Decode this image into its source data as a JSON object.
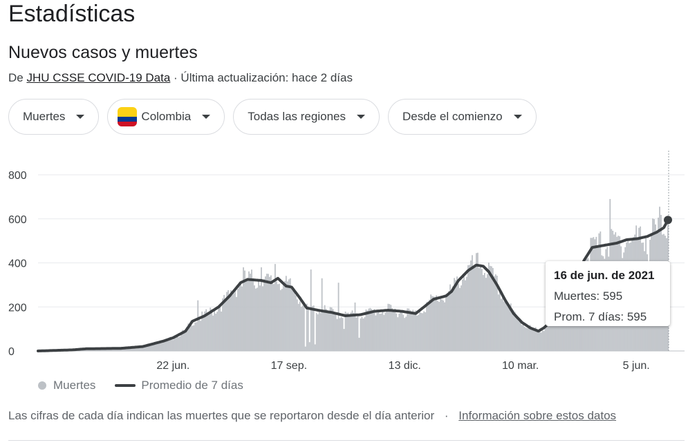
{
  "page": {
    "title": "Estadísticas"
  },
  "section": {
    "title": "Nuevos casos y muertes",
    "source_prefix": "De",
    "source_link": "JHU CSSE COVID-19 Data",
    "updated": "· Última actualización: hace 2 días"
  },
  "filters": {
    "metric": "Muertes",
    "country": "Colombia",
    "region": "Todas las regiones",
    "period": "Desde el comienzo"
  },
  "colors": {
    "bars": "#bdc1c6",
    "line": "#3c4043",
    "grid": "#e8eaed",
    "flag_yellow": "#fcd116",
    "flag_blue": "#003893",
    "flag_red": "#ce1126"
  },
  "chart_data": {
    "type": "bar",
    "y_ticks": [
      "0",
      "200",
      "400",
      "600",
      "800"
    ],
    "x_ticks": [
      "22 jun.",
      "17 sep.",
      "13 dic.",
      "10 mar.",
      "5 jun."
    ],
    "ylim": [
      0,
      900
    ],
    "grid": true,
    "legend_position": "bottom-left",
    "legend": [
      "Muertes",
      "Promedio de 7 días"
    ],
    "series": [
      {
        "name": "Muertes",
        "type": "bar"
      },
      {
        "name": "Promedio de 7 días",
        "type": "line"
      }
    ],
    "avg_control_points": [
      [
        "2020-03-16",
        0
      ],
      [
        "2020-04-10",
        5
      ],
      [
        "2020-04-20",
        10
      ],
      [
        "2020-05-15",
        12
      ],
      [
        "2020-05-31",
        20
      ],
      [
        "2020-06-15",
        45
      ],
      [
        "2020-06-22",
        60
      ],
      [
        "2020-07-01",
        90
      ],
      [
        "2020-07-06",
        135
      ],
      [
        "2020-07-15",
        160
      ],
      [
        "2020-07-25",
        200
      ],
      [
        "2020-08-02",
        250
      ],
      [
        "2020-08-10",
        310
      ],
      [
        "2020-08-15",
        325
      ],
      [
        "2020-08-25",
        320
      ],
      [
        "2020-09-01",
        310
      ],
      [
        "2020-09-06",
        330
      ],
      [
        "2020-09-12",
        295
      ],
      [
        "2020-09-16",
        290
      ],
      [
        "2020-09-22",
        240
      ],
      [
        "2020-09-27",
        195
      ],
      [
        "2020-10-05",
        185
      ],
      [
        "2020-10-15",
        175
      ],
      [
        "2020-10-25",
        160
      ],
      [
        "2020-11-05",
        165
      ],
      [
        "2020-11-15",
        180
      ],
      [
        "2020-11-25",
        185
      ],
      [
        "2020-12-05",
        180
      ],
      [
        "2020-12-15",
        170
      ],
      [
        "2020-12-20",
        195
      ],
      [
        "2020-12-28",
        235
      ],
      [
        "2021-01-06",
        250
      ],
      [
        "2021-01-10",
        270
      ],
      [
        "2021-01-15",
        320
      ],
      [
        "2021-01-22",
        365
      ],
      [
        "2021-01-28",
        390
      ],
      [
        "2021-02-02",
        385
      ],
      [
        "2021-02-06",
        360
      ],
      [
        "2021-02-12",
        300
      ],
      [
        "2021-02-18",
        230
      ],
      [
        "2021-02-24",
        170
      ],
      [
        "2021-03-02",
        130
      ],
      [
        "2021-03-08",
        105
      ],
      [
        "2021-03-14",
        90
      ],
      [
        "2021-03-18",
        105
      ],
      [
        "2021-03-25",
        145
      ],
      [
        "2021-04-02",
        200
      ],
      [
        "2021-04-10",
        300
      ],
      [
        "2021-04-16",
        410
      ],
      [
        "2021-04-22",
        470
      ],
      [
        "2021-05-01",
        480
      ],
      [
        "2021-05-10",
        490
      ],
      [
        "2021-05-17",
        505
      ],
      [
        "2021-05-25",
        510
      ],
      [
        "2021-06-01",
        520
      ],
      [
        "2021-06-08",
        540
      ],
      [
        "2021-06-13",
        560
      ],
      [
        "2021-06-16",
        595
      ]
    ],
    "daily_spikes": [
      [
        "2020-07-10",
        230
      ],
      [
        "2020-08-12",
        380
      ],
      [
        "2020-08-25",
        380
      ],
      [
        "2020-09-04",
        395
      ],
      [
        "2020-09-30",
        370
      ],
      [
        "2020-10-03",
        350
      ],
      [
        "2020-10-08",
        330
      ],
      [
        "2020-10-20",
        310
      ],
      [
        "2020-11-01",
        220
      ],
      [
        "2021-05-05",
        690
      ],
      [
        "2021-06-10",
        655
      ]
    ],
    "daily_dips": [
      [
        "2020-09-26",
        20
      ],
      [
        "2020-09-29",
        40
      ],
      [
        "2020-10-03",
        30
      ],
      [
        "2020-10-24",
        100
      ],
      [
        "2020-11-04",
        60
      ],
      [
        "2021-06-02",
        120
      ]
    ],
    "highlight": {
      "date": "2021-06-16",
      "value": 595
    }
  },
  "tooltip": {
    "date": "16 de jun. de 2021",
    "deaths": "Muertes: 595",
    "avg": "Prom. 7 días: 595"
  },
  "legend": {
    "bars": "Muertes",
    "avg": "Promedio de 7 días"
  },
  "footer": {
    "note": "Las cifras de cada día indican las muertes que se reportaron desde el día anterior",
    "sep": "·",
    "link": "Información sobre estos datos"
  }
}
